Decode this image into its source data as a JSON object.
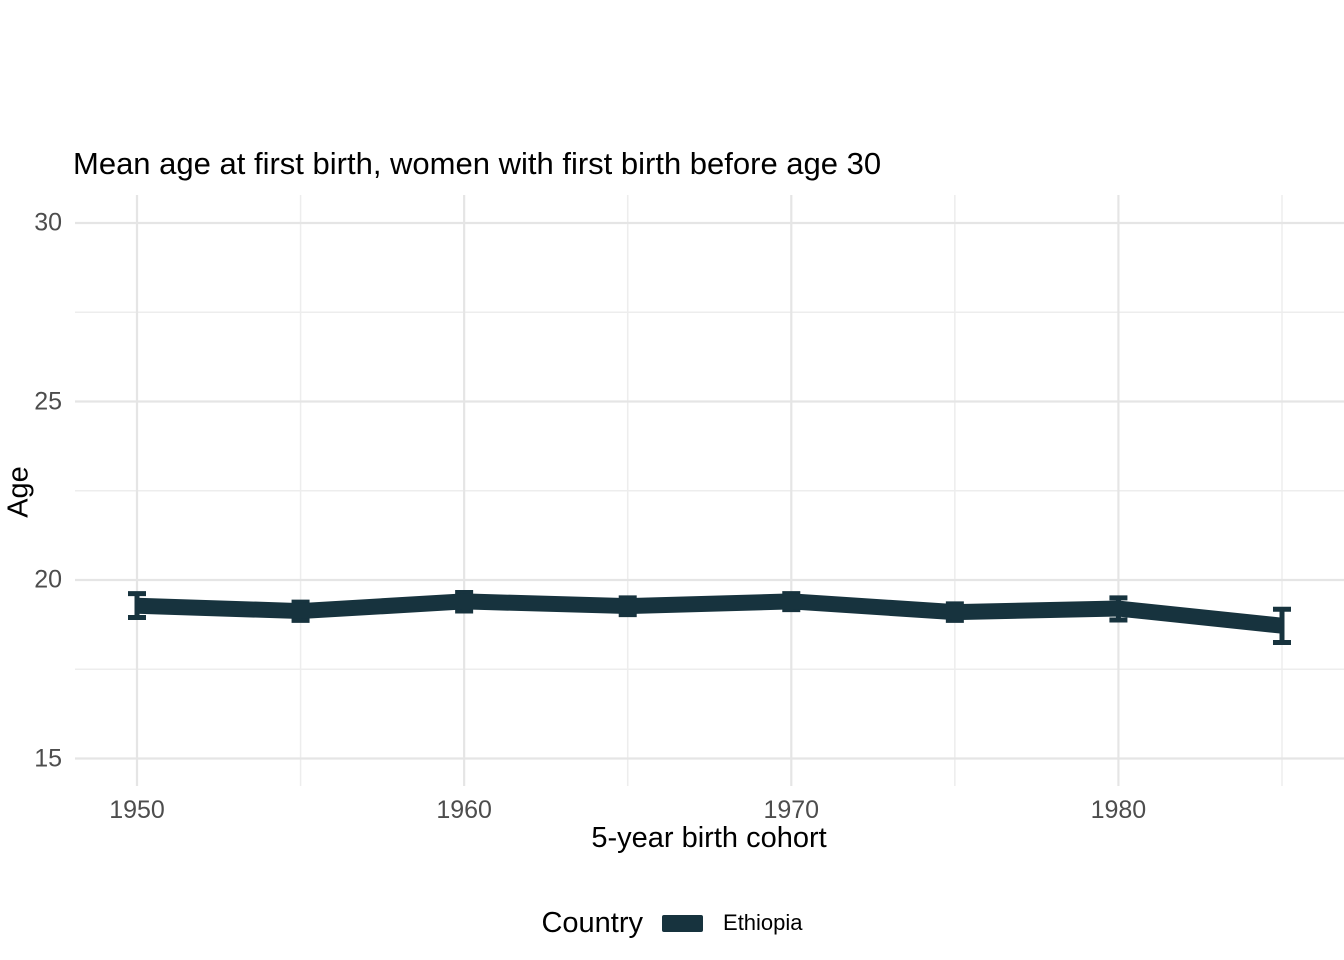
{
  "chart_data": {
    "type": "line",
    "title": "Mean age at first birth, women with first birth before age 30",
    "xlabel": "5-year birth cohort",
    "ylabel": "Age",
    "x": [
      1950,
      1955,
      1960,
      1965,
      1970,
      1975,
      1980,
      1985
    ],
    "series": [
      {
        "name": "Ethiopia",
        "values": [
          19.28,
          19.13,
          19.4,
          19.27,
          19.4,
          19.1,
          19.2,
          18.72
        ],
        "ci_low": [
          18.95,
          18.87,
          19.13,
          19.03,
          19.17,
          18.87,
          18.88,
          18.25
        ],
        "ci_high": [
          19.62,
          19.38,
          19.65,
          19.5,
          19.62,
          19.33,
          19.5,
          19.18
        ],
        "color": "#17333E"
      }
    ],
    "x_ticks": [
      1950,
      1960,
      1970,
      1980
    ],
    "x_minor": [
      1955,
      1965,
      1975,
      1985
    ],
    "y_ticks": [
      15,
      20,
      25,
      30
    ],
    "y_minor": [
      17.5,
      22.5,
      27.5
    ],
    "xlim": [
      1948.1,
      1986.9
    ],
    "ylim": [
      14.3,
      30.8
    ],
    "grid": true,
    "legend_position": "bottom"
  },
  "legend": {
    "title": "Country",
    "items": [
      {
        "label": "Ethiopia",
        "color": "#17333E"
      }
    ]
  },
  "colors": {
    "line": "#17333E",
    "grid_major": "#E5E5E5",
    "grid_minor": "#EDEDED",
    "tick_text": "#4D4D4D",
    "title_text": "#000000",
    "background": "#FFFFFF"
  }
}
